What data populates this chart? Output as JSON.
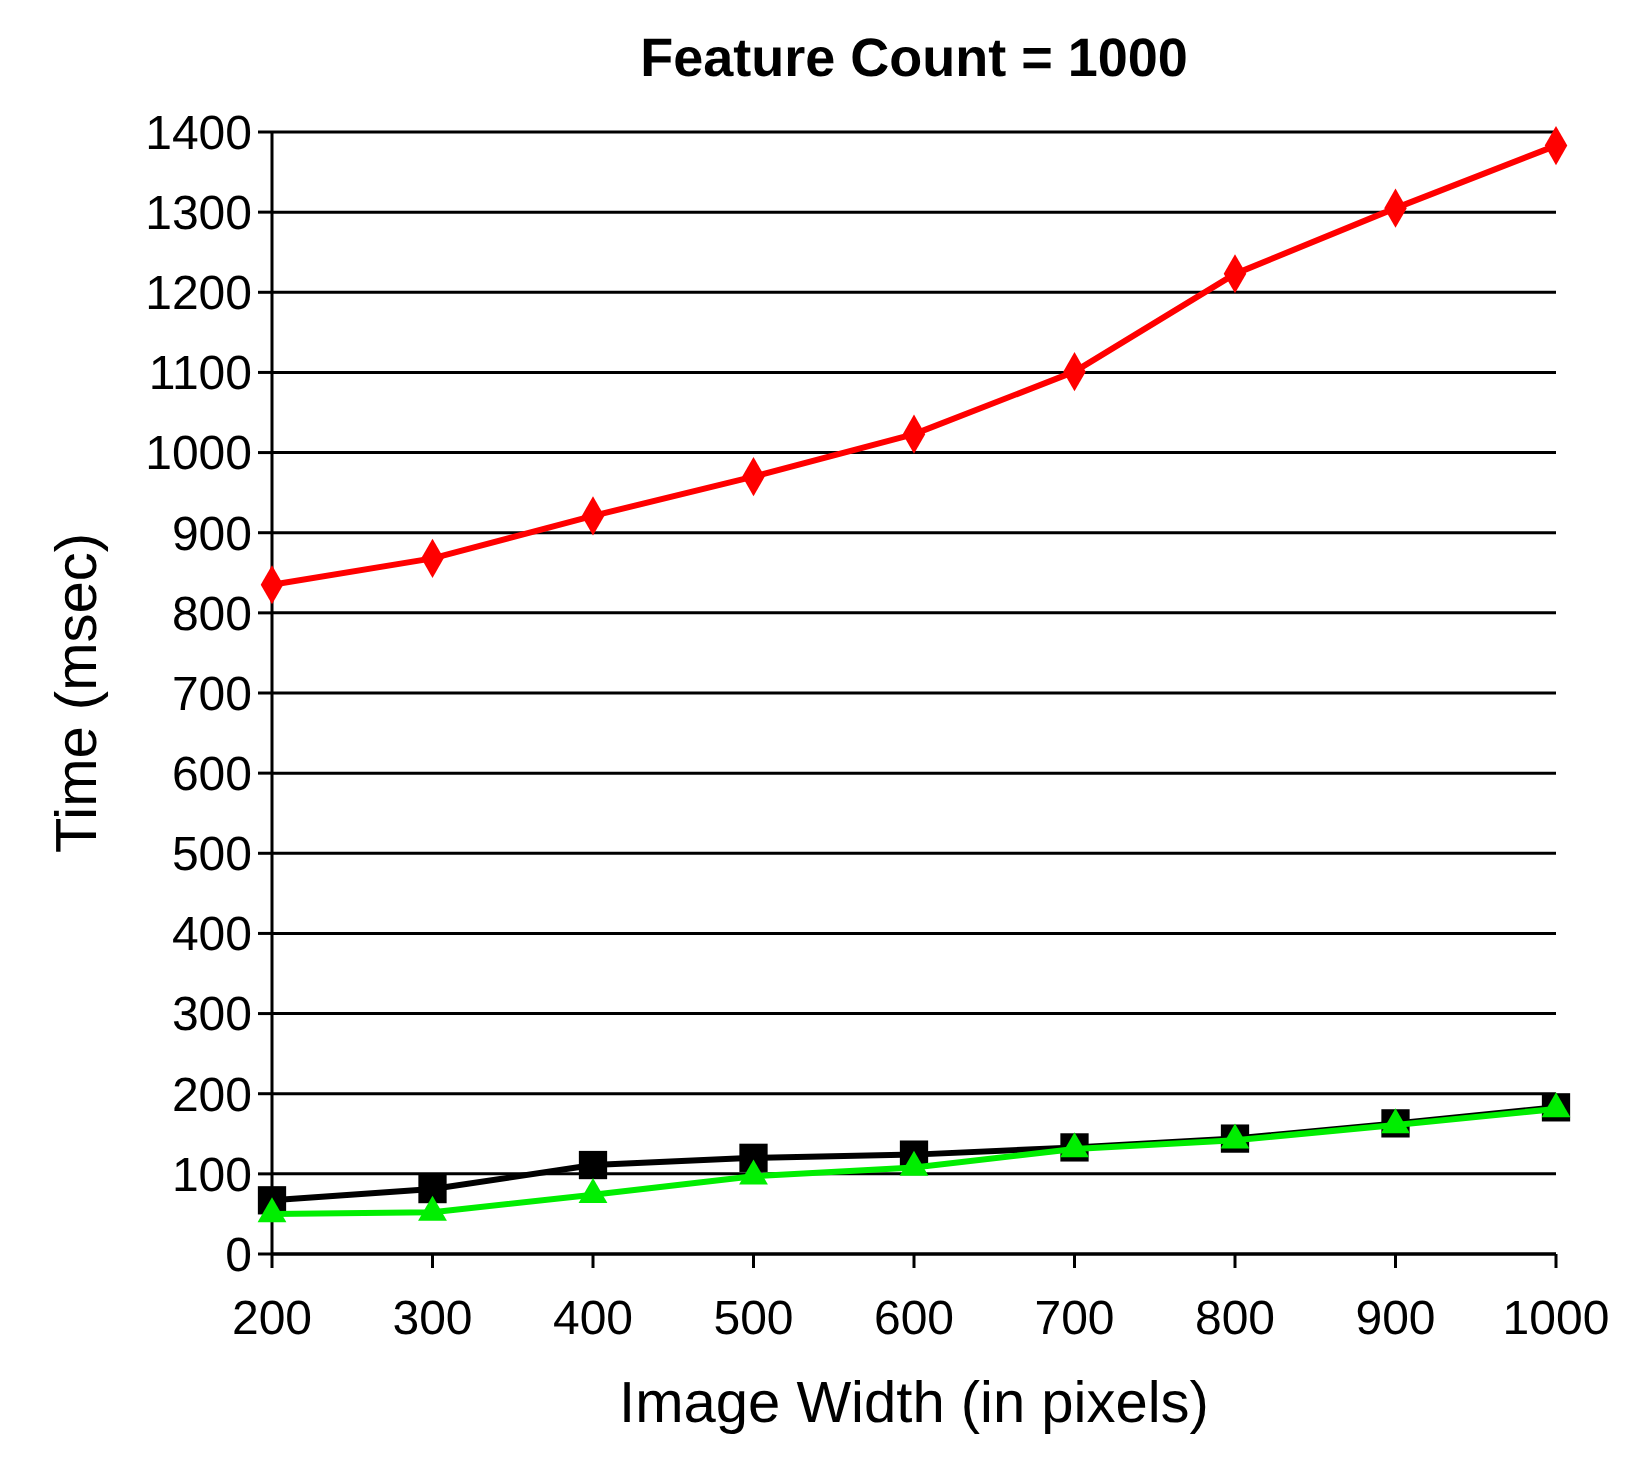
{
  "chart_data": {
    "type": "line",
    "title": "Feature Count = 1000",
    "xlabel": "Image Width (in pixels)",
    "ylabel": "Time (msec)",
    "x": [
      200,
      300,
      400,
      500,
      600,
      700,
      800,
      900,
      1000
    ],
    "series": [
      {
        "color": "#ff0000",
        "marker": "diamond",
        "values": [
          835,
          868,
          921,
          970,
          1023,
          1101,
          1223,
          1305,
          1383
        ]
      },
      {
        "color": "#000000",
        "marker": "square",
        "values": [
          67,
          81,
          111,
          120,
          124,
          133,
          144,
          163,
          183
        ]
      },
      {
        "color": "#00ee00",
        "marker": "triangle",
        "values": [
          50,
          52,
          74,
          97,
          108,
          131,
          142,
          161,
          181
        ]
      }
    ],
    "xlim": [
      200,
      1000
    ],
    "xticks": [
      200,
      300,
      400,
      500,
      600,
      700,
      800,
      900,
      1000
    ],
    "ylim": [
      0,
      1400
    ],
    "yticks": [
      0,
      100,
      200,
      300,
      400,
      500,
      600,
      700,
      800,
      900,
      1000,
      1100,
      1200,
      1300,
      1400
    ],
    "grid": "y"
  }
}
